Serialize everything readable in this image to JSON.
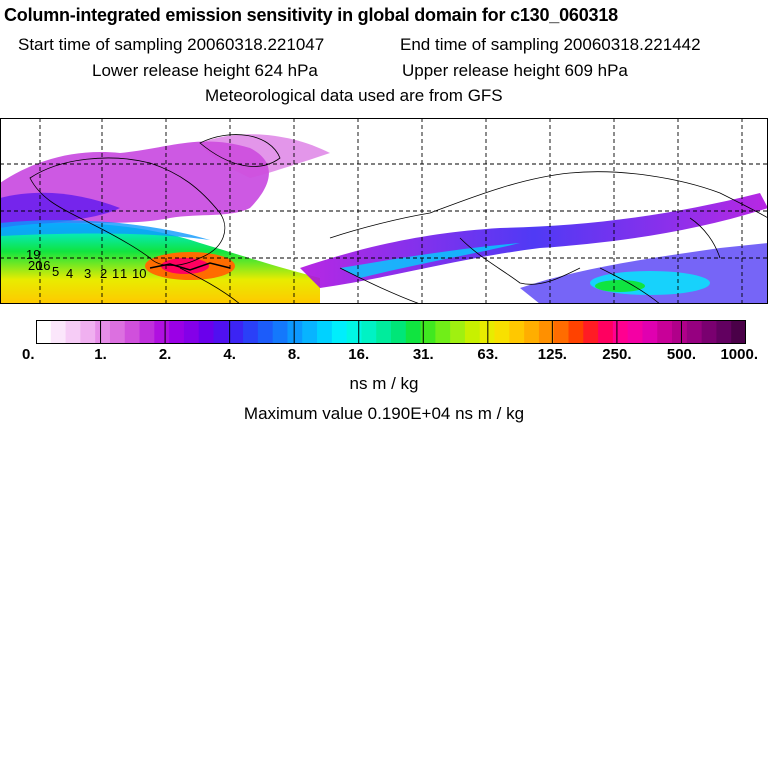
{
  "title": "Column-integrated emission sensitivity in global domain for c130_060318",
  "start_label": "Start time of sampling 20060318.221047",
  "end_label": "End time of sampling 20060318.221442",
  "lower_label": "Lower release height  624 hPa",
  "upper_label": "Upper release height  609 hPa",
  "met_label": "Meteorological data used are from GFS",
  "track_labels": [
    "19",
    "20",
    "16",
    "5",
    "4",
    "3",
    "2",
    "1",
    "1",
    "10"
  ],
  "colorbar": {
    "ticks": [
      "0.",
      "1.",
      "2.",
      "4.",
      "8.",
      "16.",
      "31.",
      "63.",
      "125.",
      "250.",
      "500.",
      "1000."
    ],
    "colors": [
      "#ffffff",
      "#fbe6fb",
      "#f6ccf6",
      "#f0b0f0",
      "#e68ee8",
      "#dc70e0",
      "#d050dc",
      "#c030dc",
      "#b010e0",
      "#9a00e6",
      "#8400e8",
      "#6a00ec",
      "#5010f0",
      "#3c24f4",
      "#2a40f8",
      "#1c5cfa",
      "#1478fc",
      "#0c98fe",
      "#08b4ff",
      "#00d2ff",
      "#00eefc",
      "#00f6e4",
      "#00f2c4",
      "#00ec9c",
      "#00e678",
      "#10e440",
      "#40e820",
      "#70ee18",
      "#a0f010",
      "#c8f000",
      "#e8ec00",
      "#f8e000",
      "#ffc800",
      "#ffae00",
      "#ff9000",
      "#ff6c00",
      "#ff4200",
      "#ff1c24",
      "#ff0060",
      "#ff0090",
      "#f400a4",
      "#e000b0",
      "#c80098",
      "#b0008a",
      "#960080",
      "#7a0070",
      "#620060",
      "#4a0048"
    ],
    "units": "ns m / kg"
  },
  "max_value": "Maximum value  0.190E+04 ns m / kg",
  "colors": {
    "land_outline": "#000000",
    "grid": "#000000"
  }
}
